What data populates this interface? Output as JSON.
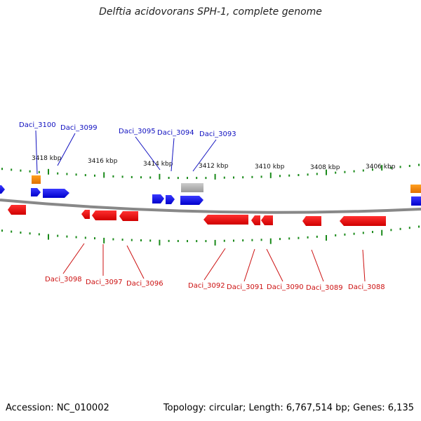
{
  "title": "Delftia acidovorans SPH-1, complete genome",
  "footer": {
    "accession": "Accession: NC_010002",
    "summary": "Topology: circular; Length: 6,767,514 bp; Genes: 6,135"
  },
  "colors": {
    "forward_gene": "#0000ee",
    "reverse_gene": "#ee0000",
    "rna_gene": "#ff8c00",
    "pseudo_gene": "#aaaaaa",
    "tick": "#1a8a1a",
    "backbone": "#888888",
    "forward_label": "#1010c0",
    "reverse_label": "#cc1010"
  },
  "ruler_labels": [
    "3418 kbp",
    "3416 kbp",
    "3414 kbp",
    "3412 kbp",
    "3410 kbp",
    "3408 kbp",
    "3406 kbp"
  ],
  "forward_labels": [
    "Daci_3100",
    "Daci_3099",
    "Daci_3095",
    "Daci_3094",
    "Daci_3093"
  ],
  "reverse_labels": [
    "Daci_3098",
    "Daci_3097",
    "Daci_3096",
    "Daci_3092",
    "Daci_3091",
    "Daci_3090",
    "Daci_3089",
    "Daci_3088"
  ]
}
